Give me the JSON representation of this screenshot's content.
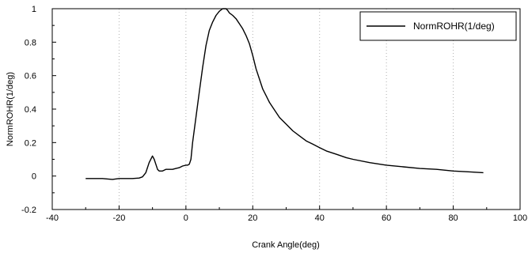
{
  "chart_data": {
    "type": "line",
    "title": "",
    "xlabel": "Crank Angle(deg)",
    "ylabel": "NormROHR(1/deg)",
    "xlim": [
      -40,
      100
    ],
    "ylim": [
      -0.2,
      1
    ],
    "x_ticks": [
      -40,
      -20,
      0,
      20,
      40,
      60,
      80,
      100
    ],
    "x_tick_labels": [
      "-40",
      "-20",
      "0",
      "20",
      "40",
      "60",
      "80",
      "100"
    ],
    "y_ticks": [
      -0.2,
      0,
      0.2,
      0.4,
      0.6,
      0.8,
      1
    ],
    "y_tick_labels": [
      "-0.2",
      "0",
      "0.2",
      "0.4",
      "0.6",
      "0.8",
      "1"
    ],
    "grid": "vertical dotted lines at x ticks",
    "legend_position": "top-right",
    "colors": {
      "line": "#000000",
      "grid": "#b0b0b0",
      "background": "#ffffff"
    },
    "series": [
      {
        "name": "NormROHR(1/deg)",
        "x": [
          -30,
          -25,
          -22,
          -20,
          -18,
          -16,
          -14,
          -13,
          -12,
          -11,
          -10,
          -9.5,
          -9,
          -8.5,
          -8,
          -7,
          -6,
          -5,
          -4,
          -3,
          -2,
          -1,
          0,
          0.5,
          1,
          1.5,
          2,
          3,
          4,
          5,
          6,
          7,
          8,
          9,
          10,
          11,
          12,
          12.5,
          13,
          14,
          15,
          16,
          17,
          18,
          19,
          20,
          21,
          22,
          23,
          24,
          25,
          26,
          28,
          30,
          32,
          34,
          36,
          38,
          40,
          42,
          45,
          48,
          50,
          55,
          60,
          65,
          70,
          75,
          80,
          85,
          89
        ],
        "y": [
          -0.015,
          -0.015,
          -0.02,
          -0.015,
          -0.015,
          -0.015,
          -0.012,
          -0.005,
          0.02,
          0.08,
          0.12,
          0.1,
          0.07,
          0.04,
          0.03,
          0.03,
          0.04,
          0.04,
          0.04,
          0.045,
          0.05,
          0.06,
          0.065,
          0.065,
          0.07,
          0.1,
          0.2,
          0.35,
          0.5,
          0.65,
          0.78,
          0.87,
          0.92,
          0.96,
          0.985,
          1.0,
          1.0,
          0.99,
          0.975,
          0.96,
          0.94,
          0.91,
          0.88,
          0.84,
          0.79,
          0.72,
          0.64,
          0.58,
          0.52,
          0.48,
          0.44,
          0.41,
          0.35,
          0.31,
          0.27,
          0.24,
          0.21,
          0.19,
          0.17,
          0.15,
          0.13,
          0.11,
          0.1,
          0.08,
          0.065,
          0.055,
          0.045,
          0.04,
          0.03,
          0.025,
          0.02
        ]
      }
    ]
  }
}
